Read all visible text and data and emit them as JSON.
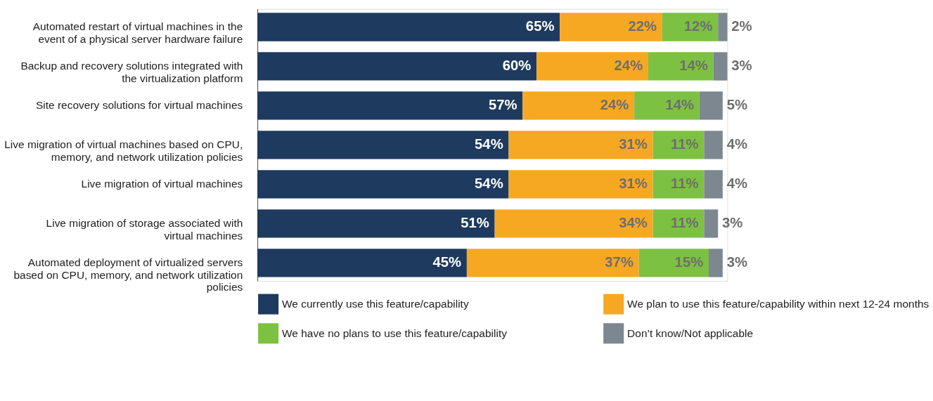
{
  "chart_data": {
    "type": "bar",
    "orientation": "horizontal",
    "stacked": true,
    "legend": "bottom",
    "tick_labels": "y",
    "categories": [
      "Automated restart of virtual machines in the event of a physical server hardware failure",
      "Backup and recovery solutions integrated with the virtualization platform",
      "Site recovery solutions for virtual machines",
      "Live migration of virtual machines based on CPU, memory, and network utilization policies",
      "Live migration of virtual machines",
      "Live migration of storage associated with virtual machines",
      "Automated deployment of virtualized servers based on CPU, memory, and network utilization policies"
    ],
    "series": [
      {
        "name": "We currently use this feature/capability",
        "color": "#1e3a5f",
        "values": [
          65,
          60,
          57,
          54,
          54,
          51,
          45
        ],
        "value_labels": [
          "65%",
          "60%",
          "57%",
          "54%",
          "54%",
          "51%",
          "45%"
        ]
      },
      {
        "name": "We plan to use this feature/capability within next 12-24 months",
        "color": "#f7a823",
        "values": [
          22,
          24,
          24,
          31,
          31,
          34,
          37
        ],
        "value_labels": [
          "22%",
          "24%",
          "24%",
          "31%",
          "31%",
          "34%",
          "37%"
        ]
      },
      {
        "name": "We have no plans to use this feature/capability",
        "color": "#7dc142",
        "values": [
          12,
          14,
          14,
          11,
          11,
          11,
          15
        ],
        "value_labels": [
          "12%",
          "14%",
          "14%",
          "11%",
          "11%",
          "11%",
          "15%"
        ]
      },
      {
        "name": "Don’t know/Not applicable",
        "color": "#7d878f",
        "values": [
          2,
          3,
          5,
          4,
          4,
          3,
          3
        ],
        "value_labels": [
          "2%",
          "3%",
          "5%",
          "4%",
          "4%",
          "3%",
          "3%"
        ]
      }
    ]
  }
}
